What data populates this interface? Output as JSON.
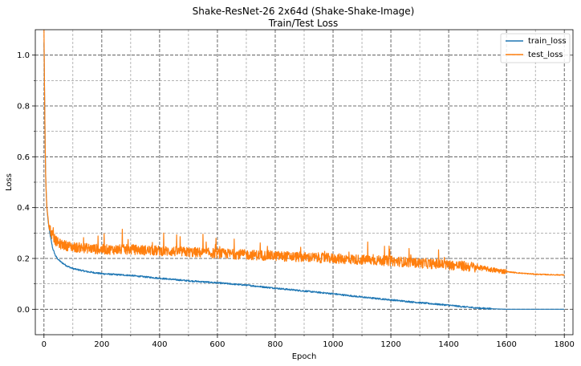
{
  "chart_data": {
    "type": "line",
    "title": "Shake-ResNet-26 2x64d (Shake-Shake-Image)",
    "subtitle": "Train/Test Loss",
    "xlabel": "Epoch",
    "ylabel": "Loss",
    "xlim": [
      -30,
      1830
    ],
    "ylim": [
      -0.1,
      1.1
    ],
    "xticks": [
      0,
      200,
      400,
      600,
      800,
      1000,
      1200,
      1400,
      1600,
      1800
    ],
    "xticks_minor": [
      100,
      300,
      500,
      700,
      900,
      1100,
      1300,
      1500,
      1700
    ],
    "yticks": [
      0.0,
      0.2,
      0.4,
      0.6,
      0.8,
      1.0
    ],
    "yticks_minor": [
      0.1,
      0.3,
      0.5,
      0.7,
      0.9
    ],
    "xtick_labels": [
      "0",
      "200",
      "400",
      "600",
      "800",
      "1000",
      "1200",
      "1400",
      "1600",
      "1800"
    ],
    "ytick_labels": [
      "0.0",
      "0.2",
      "0.4",
      "0.6",
      "0.8",
      "1.0"
    ],
    "grid": true,
    "legend_position": "top-right",
    "series": [
      {
        "name": "train_loss",
        "color": "#1f77b4",
        "x": [
          0,
          2,
          4,
          6,
          8,
          10,
          15,
          20,
          25,
          30,
          40,
          50,
          60,
          80,
          100,
          150,
          200,
          300,
          400,
          500,
          600,
          700,
          800,
          900,
          1000,
          1100,
          1200,
          1300,
          1400,
          1450,
          1500,
          1550,
          1600,
          1700,
          1800
        ],
        "y": [
          1.05,
          0.85,
          0.65,
          0.52,
          0.45,
          0.4,
          0.34,
          0.3,
          0.27,
          0.24,
          0.21,
          0.195,
          0.185,
          0.17,
          0.16,
          0.148,
          0.14,
          0.133,
          0.122,
          0.112,
          0.104,
          0.095,
          0.083,
          0.072,
          0.061,
          0.048,
          0.037,
          0.026,
          0.016,
          0.01,
          0.005,
          0.002,
          0.0,
          0.0,
          0.0
        ]
      },
      {
        "name": "test_loss",
        "color": "#ff7f0e",
        "x": [
          0,
          2,
          4,
          6,
          8,
          10,
          15,
          20,
          25,
          30,
          40,
          50,
          60,
          80,
          100,
          150,
          200,
          300,
          400,
          500,
          600,
          700,
          800,
          900,
          1000,
          1100,
          1200,
          1300,
          1400,
          1450,
          1500,
          1550,
          1600,
          1650,
          1700,
          1750,
          1800
        ],
        "y": [
          1.1,
          0.85,
          0.65,
          0.52,
          0.45,
          0.4,
          0.35,
          0.32,
          0.3,
          0.29,
          0.27,
          0.26,
          0.255,
          0.25,
          0.245,
          0.24,
          0.235,
          0.235,
          0.23,
          0.225,
          0.22,
          0.215,
          0.21,
          0.205,
          0.2,
          0.195,
          0.19,
          0.182,
          0.175,
          0.17,
          0.165,
          0.155,
          0.148,
          0.142,
          0.138,
          0.136,
          0.135
        ]
      }
    ]
  }
}
